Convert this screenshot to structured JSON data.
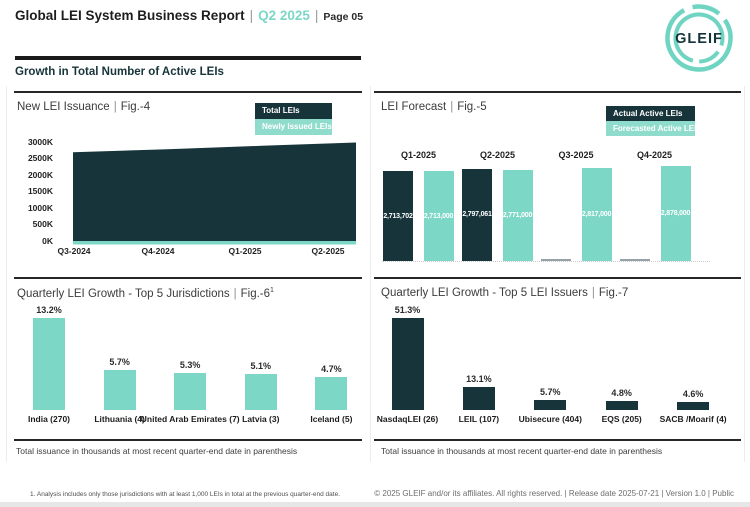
{
  "colors": {
    "dark": "#16343A",
    "teal": "#7CD7C6",
    "teal_light": "#8FDCCC",
    "empty_marker_gray": "#97a1a8"
  },
  "header": {
    "title": "Global LEI System Business Report",
    "divider": "|",
    "quarter": "Q2 2025",
    "page_label": "Page 05",
    "logo_text": "GLEIF"
  },
  "section_heading": "Growth in Total Number of Active LEIs",
  "chart_data": [
    {
      "id": "fig4",
      "type": "area",
      "title": "New LEI Issuance",
      "fig_label": "Fig.-4",
      "categories": [
        "Q3-2024",
        "Q4-2024",
        "Q1-2025",
        "Q2-2025"
      ],
      "y_ticks": [
        "0K",
        "500K",
        "1000K",
        "1500K",
        "2000K",
        "2500K",
        "3000K"
      ],
      "ylim": [
        0,
        3000000
      ],
      "series": [
        {
          "name": "Total LEIs",
          "color": "#16343A",
          "values": [
            2690000,
            2780000,
            2885000,
            2985000
          ]
        },
        {
          "name": "Newly Issued LEIs",
          "color": "#7CD7C6",
          "values": [
            60000,
            62000,
            65000,
            68000
          ]
        }
      ],
      "legend": [
        "Total LEIs",
        "Newly Issued LEIs"
      ],
      "legend_position": "top-right"
    },
    {
      "id": "fig5",
      "type": "bar",
      "title": "LEI Forecast",
      "fig_label": "Fig.-5",
      "categories": [
        "Q1-2025",
        "Q2-2025",
        "Q3-2025",
        "Q4-2025"
      ],
      "series": [
        {
          "name": "Actual Active LEIs",
          "color": "#16343A",
          "values": [
            2713702,
            2797061,
            null,
            null
          ],
          "labels": [
            "2,713,702",
            "2,797,061",
            "",
            ""
          ]
        },
        {
          "name": "Forecasted Active LEIs",
          "color": "#7CD7C6",
          "values": [
            2713000,
            2771000,
            2817000,
            2878000
          ],
          "labels": [
            "2,713,000",
            "2,771,000",
            "2,817,000",
            "2,878,000"
          ]
        }
      ],
      "ylim": [
        0,
        2878000
      ],
      "legend": [
        "Actual Active LEIs",
        "Forecasted Active LEIs"
      ],
      "legend_position": "top-right"
    },
    {
      "id": "fig6",
      "type": "bar",
      "title": "Quarterly LEI Growth - Top 5 Jurisdictions",
      "fig_label": "Fig.-6",
      "fig_superscript": "1",
      "categories": [
        "India (270)",
        "Lithuania (4)",
        "United Arab Emirates (7)",
        "Latvia (3)",
        "Iceland (5)"
      ],
      "values": [
        13.2,
        5.7,
        5.3,
        5.1,
        4.7
      ],
      "value_labels": [
        "13.2%",
        "5.7%",
        "5.3%",
        "5.1%",
        "4.7%"
      ],
      "bar_color": "#7CD7C6",
      "note": "Total issuance in thousands at most recent quarter-end date in parenthesis"
    },
    {
      "id": "fig7",
      "type": "bar",
      "title": "Quarterly LEI Growth - Top 5 LEI Issuers",
      "fig_label": "Fig.-7",
      "categories": [
        "NasdaqLEI (26)",
        "LEIL (107)",
        "Ubisecure (404)",
        "EQS (205)",
        "SACB /Moarif (4)"
      ],
      "values": [
        51.3,
        13.1,
        5.7,
        4.8,
        4.6
      ],
      "value_labels": [
        "51.3%",
        "13.1%",
        "5.7%",
        "4.8%",
        "4.6%"
      ],
      "bar_color": "#16343A",
      "note": "Total issuance in thousands at most recent quarter-end date in parenthesis"
    }
  ],
  "footnote": "1. Analysis includes only those jurisdictions with at least 1,000 LEIs in total at the previous quarter-end date.",
  "footer": "© 2025 GLEIF and/or its affiliates. All rights reserved. | Release date 2025-07-21 | Version 1.0 | Public"
}
